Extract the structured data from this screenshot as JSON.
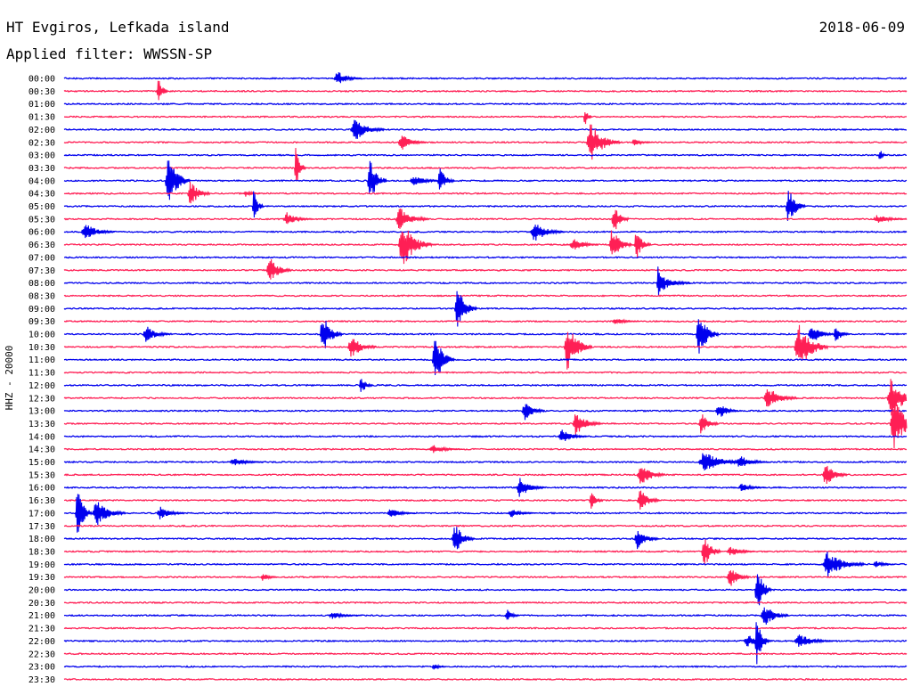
{
  "header": {
    "station": "HT Evgiros, Lefkada island",
    "date": "2018-06-09",
    "filter": "Applied filter: WWSSN-SP"
  },
  "chart_data": {
    "type": "line",
    "title": "HT Evgiros, Lefkada island",
    "subtitle": "Applied filter: WWSSN-SP",
    "date": "2018-06-09",
    "ylabel": "HHZ - 20000",
    "xlabel": "",
    "x_range_minutes": [
      0,
      30
    ],
    "y_range": [
      "00:00",
      "23:30"
    ],
    "grid": false,
    "trace_colors": [
      "#0000ee",
      "#ff1f55"
    ],
    "rows": [
      {
        "label": "00:00",
        "color": "#0000ee",
        "events": [
          {
            "t": 9.6,
            "amp": 9,
            "dur": 1.0
          }
        ]
      },
      {
        "label": "00:30",
        "color": "#ff1f55",
        "events": [
          {
            "t": 3.3,
            "amp": 18,
            "dur": 0.4
          }
        ]
      },
      {
        "label": "01:00",
        "color": "#0000ee",
        "events": []
      },
      {
        "label": "01:30",
        "color": "#ff1f55",
        "events": [
          {
            "t": 18.5,
            "amp": 15,
            "dur": 0.3
          }
        ]
      },
      {
        "label": "02:00",
        "color": "#0000ee",
        "events": [
          {
            "t": 10.2,
            "amp": 14,
            "dur": 1.2
          }
        ]
      },
      {
        "label": "02:30",
        "color": "#ff1f55",
        "events": [
          {
            "t": 11.9,
            "amp": 10,
            "dur": 1.0
          },
          {
            "t": 18.6,
            "amp": 24,
            "dur": 1.2
          },
          {
            "t": 20.2,
            "amp": 4,
            "dur": 0.8
          }
        ]
      },
      {
        "label": "03:00",
        "color": "#0000ee",
        "events": [
          {
            "t": 29.0,
            "amp": 8,
            "dur": 0.3
          }
        ]
      },
      {
        "label": "03:30",
        "color": "#ff1f55",
        "events": [
          {
            "t": 8.2,
            "amp": 25,
            "dur": 0.4
          }
        ]
      },
      {
        "label": "04:00",
        "color": "#0000ee",
        "events": [
          {
            "t": 3.6,
            "amp": 30,
            "dur": 0.9
          },
          {
            "t": 10.8,
            "amp": 28,
            "dur": 0.7
          },
          {
            "t": 12.3,
            "amp": 6,
            "dur": 1.2
          },
          {
            "t": 13.3,
            "amp": 16,
            "dur": 0.6
          }
        ]
      },
      {
        "label": "04:30",
        "color": "#ff1f55",
        "events": [
          {
            "t": 4.4,
            "amp": 16,
            "dur": 0.8
          },
          {
            "t": 6.4,
            "amp": 4,
            "dur": 0.6
          }
        ]
      },
      {
        "label": "05:00",
        "color": "#0000ee",
        "events": [
          {
            "t": 6.7,
            "amp": 20,
            "dur": 0.4
          },
          {
            "t": 25.7,
            "amp": 24,
            "dur": 0.7
          }
        ]
      },
      {
        "label": "05:30",
        "color": "#ff1f55",
        "events": [
          {
            "t": 7.8,
            "amp": 8,
            "dur": 1.0
          },
          {
            "t": 11.8,
            "amp": 14,
            "dur": 1.2
          },
          {
            "t": 19.5,
            "amp": 18,
            "dur": 0.6
          },
          {
            "t": 28.8,
            "amp": 5,
            "dur": 1.2
          }
        ]
      },
      {
        "label": "06:00",
        "color": "#0000ee",
        "events": [
          {
            "t": 0.6,
            "amp": 10,
            "dur": 1.2
          },
          {
            "t": 16.6,
            "amp": 12,
            "dur": 1.2
          }
        ]
      },
      {
        "label": "06:30",
        "color": "#ff1f55",
        "events": [
          {
            "t": 11.9,
            "amp": 28,
            "dur": 1.2
          },
          {
            "t": 18.0,
            "amp": 8,
            "dur": 1.0
          },
          {
            "t": 19.4,
            "amp": 22,
            "dur": 0.8
          },
          {
            "t": 20.3,
            "amp": 18,
            "dur": 0.6
          }
        ]
      },
      {
        "label": "07:00",
        "color": "#0000ee",
        "events": []
      },
      {
        "label": "07:30",
        "color": "#ff1f55",
        "events": [
          {
            "t": 7.2,
            "amp": 16,
            "dur": 0.9
          }
        ]
      },
      {
        "label": "08:00",
        "color": "#0000ee",
        "events": [
          {
            "t": 21.1,
            "amp": 10,
            "dur": 1.2
          },
          {
            "t": 21.1,
            "amp": 22,
            "dur": 0.3
          }
        ]
      },
      {
        "label": "08:30",
        "color": "#ff1f55",
        "events": []
      },
      {
        "label": "09:00",
        "color": "#0000ee",
        "events": [
          {
            "t": 13.9,
            "amp": 26,
            "dur": 0.8
          }
        ]
      },
      {
        "label": "09:30",
        "color": "#ff1f55",
        "events": [
          {
            "t": 19.5,
            "amp": 4,
            "dur": 1.0
          }
        ]
      },
      {
        "label": "10:00",
        "color": "#0000ee",
        "events": [
          {
            "t": 2.8,
            "amp": 10,
            "dur": 1.0
          },
          {
            "t": 9.1,
            "amp": 26,
            "dur": 0.8
          },
          {
            "t": 22.5,
            "amp": 28,
            "dur": 0.8
          },
          {
            "t": 26.5,
            "amp": 12,
            "dur": 0.9
          },
          {
            "t": 27.4,
            "amp": 10,
            "dur": 0.6
          }
        ]
      },
      {
        "label": "10:30",
        "color": "#ff1f55",
        "events": [
          {
            "t": 10.1,
            "amp": 14,
            "dur": 1.0
          },
          {
            "t": 17.8,
            "amp": 28,
            "dur": 1.0
          },
          {
            "t": 26.0,
            "amp": 30,
            "dur": 1.2
          }
        ]
      },
      {
        "label": "11:00",
        "color": "#0000ee",
        "events": [
          {
            "t": 13.1,
            "amp": 30,
            "dur": 0.8
          }
        ]
      },
      {
        "label": "11:30",
        "color": "#ff1f55",
        "events": []
      },
      {
        "label": "12:00",
        "color": "#0000ee",
        "events": [
          {
            "t": 10.5,
            "amp": 12,
            "dur": 0.5
          }
        ]
      },
      {
        "label": "12:30",
        "color": "#ff1f55",
        "events": [
          {
            "t": 24.9,
            "amp": 14,
            "dur": 1.2
          },
          {
            "t": 29.3,
            "amp": 24,
            "dur": 1.2
          }
        ]
      },
      {
        "label": "13:00",
        "color": "#0000ee",
        "events": [
          {
            "t": 16.3,
            "amp": 12,
            "dur": 0.8
          },
          {
            "t": 23.2,
            "amp": 10,
            "dur": 0.8
          }
        ]
      },
      {
        "label": "13:30",
        "color": "#ff1f55",
        "events": [
          {
            "t": 18.1,
            "amp": 14,
            "dur": 1.0
          },
          {
            "t": 22.6,
            "amp": 14,
            "dur": 0.7
          },
          {
            "t": 29.4,
            "amp": 30,
            "dur": 1.2
          }
        ]
      },
      {
        "label": "14:00",
        "color": "#0000ee",
        "events": [
          {
            "t": 17.6,
            "amp": 8,
            "dur": 1.0
          }
        ]
      },
      {
        "label": "14:30",
        "color": "#ff1f55",
        "events": [
          {
            "t": 13.0,
            "amp": 5,
            "dur": 1.2
          }
        ]
      },
      {
        "label": "15:00",
        "color": "#0000ee",
        "events": [
          {
            "t": 5.9,
            "amp": 5,
            "dur": 1.2
          },
          {
            "t": 22.6,
            "amp": 14,
            "dur": 1.5
          },
          {
            "t": 23.9,
            "amp": 8,
            "dur": 1.2
          }
        ]
      },
      {
        "label": "15:30",
        "color": "#ff1f55",
        "events": [
          {
            "t": 20.4,
            "amp": 14,
            "dur": 1.0
          },
          {
            "t": 27.0,
            "amp": 14,
            "dur": 0.9
          }
        ]
      },
      {
        "label": "16:00",
        "color": "#0000ee",
        "events": [
          {
            "t": 16.1,
            "amp": 12,
            "dur": 1.0
          },
          {
            "t": 24.0,
            "amp": 5,
            "dur": 1.0
          }
        ]
      },
      {
        "label": "16:30",
        "color": "#ff1f55",
        "events": [
          {
            "t": 18.7,
            "amp": 10,
            "dur": 0.5
          },
          {
            "t": 20.4,
            "amp": 14,
            "dur": 0.8
          }
        ]
      },
      {
        "label": "17:00",
        "color": "#0000ee",
        "events": [
          {
            "t": 0.4,
            "amp": 30,
            "dur": 0.6
          },
          {
            "t": 1.0,
            "amp": 16,
            "dur": 1.2
          },
          {
            "t": 3.3,
            "amp": 8,
            "dur": 1.0
          },
          {
            "t": 11.5,
            "amp": 6,
            "dur": 1.0
          },
          {
            "t": 15.8,
            "amp": 5,
            "dur": 1.0
          }
        ]
      },
      {
        "label": "17:30",
        "color": "#ff1f55",
        "events": []
      },
      {
        "label": "18:00",
        "color": "#0000ee",
        "events": [
          {
            "t": 13.8,
            "amp": 20,
            "dur": 0.8
          },
          {
            "t": 20.3,
            "amp": 12,
            "dur": 0.9
          }
        ]
      },
      {
        "label": "18:30",
        "color": "#ff1f55",
        "events": [
          {
            "t": 22.7,
            "amp": 20,
            "dur": 0.7
          },
          {
            "t": 23.6,
            "amp": 6,
            "dur": 1.0
          }
        ]
      },
      {
        "label": "19:00",
        "color": "#0000ee",
        "events": [
          {
            "t": 27.0,
            "amp": 16,
            "dur": 1.5
          },
          {
            "t": 28.8,
            "amp": 4,
            "dur": 0.8
          }
        ]
      },
      {
        "label": "19:30",
        "color": "#ff1f55",
        "events": [
          {
            "t": 7.0,
            "amp": 5,
            "dur": 0.6
          },
          {
            "t": 23.6,
            "amp": 14,
            "dur": 0.8
          }
        ]
      },
      {
        "label": "20:00",
        "color": "#0000ee",
        "events": [
          {
            "t": 24.6,
            "amp": 30,
            "dur": 0.6
          }
        ]
      },
      {
        "label": "20:30",
        "color": "#ff1f55",
        "events": []
      },
      {
        "label": "21:00",
        "color": "#0000ee",
        "events": [
          {
            "t": 24.8,
            "amp": 14,
            "dur": 1.0
          },
          {
            "t": 9.4,
            "amp": 4,
            "dur": 1.2
          },
          {
            "t": 15.7,
            "amp": 8,
            "dur": 0.5
          }
        ]
      },
      {
        "label": "21:30",
        "color": "#ff1f55",
        "events": []
      },
      {
        "label": "22:00",
        "color": "#0000ee",
        "events": [
          {
            "t": 24.2,
            "amp": 8,
            "dur": 1.0
          },
          {
            "t": 26.0,
            "amp": 8,
            "dur": 1.4
          },
          {
            "t": 24.6,
            "amp": 30,
            "dur": 0.5
          }
        ]
      },
      {
        "label": "22:30",
        "color": "#ff1f55",
        "events": []
      },
      {
        "label": "23:00",
        "color": "#0000ee",
        "events": [
          {
            "t": 13.1,
            "amp": 4,
            "dur": 0.5
          }
        ]
      },
      {
        "label": "23:30",
        "color": "#ff1f55",
        "events": []
      }
    ]
  }
}
